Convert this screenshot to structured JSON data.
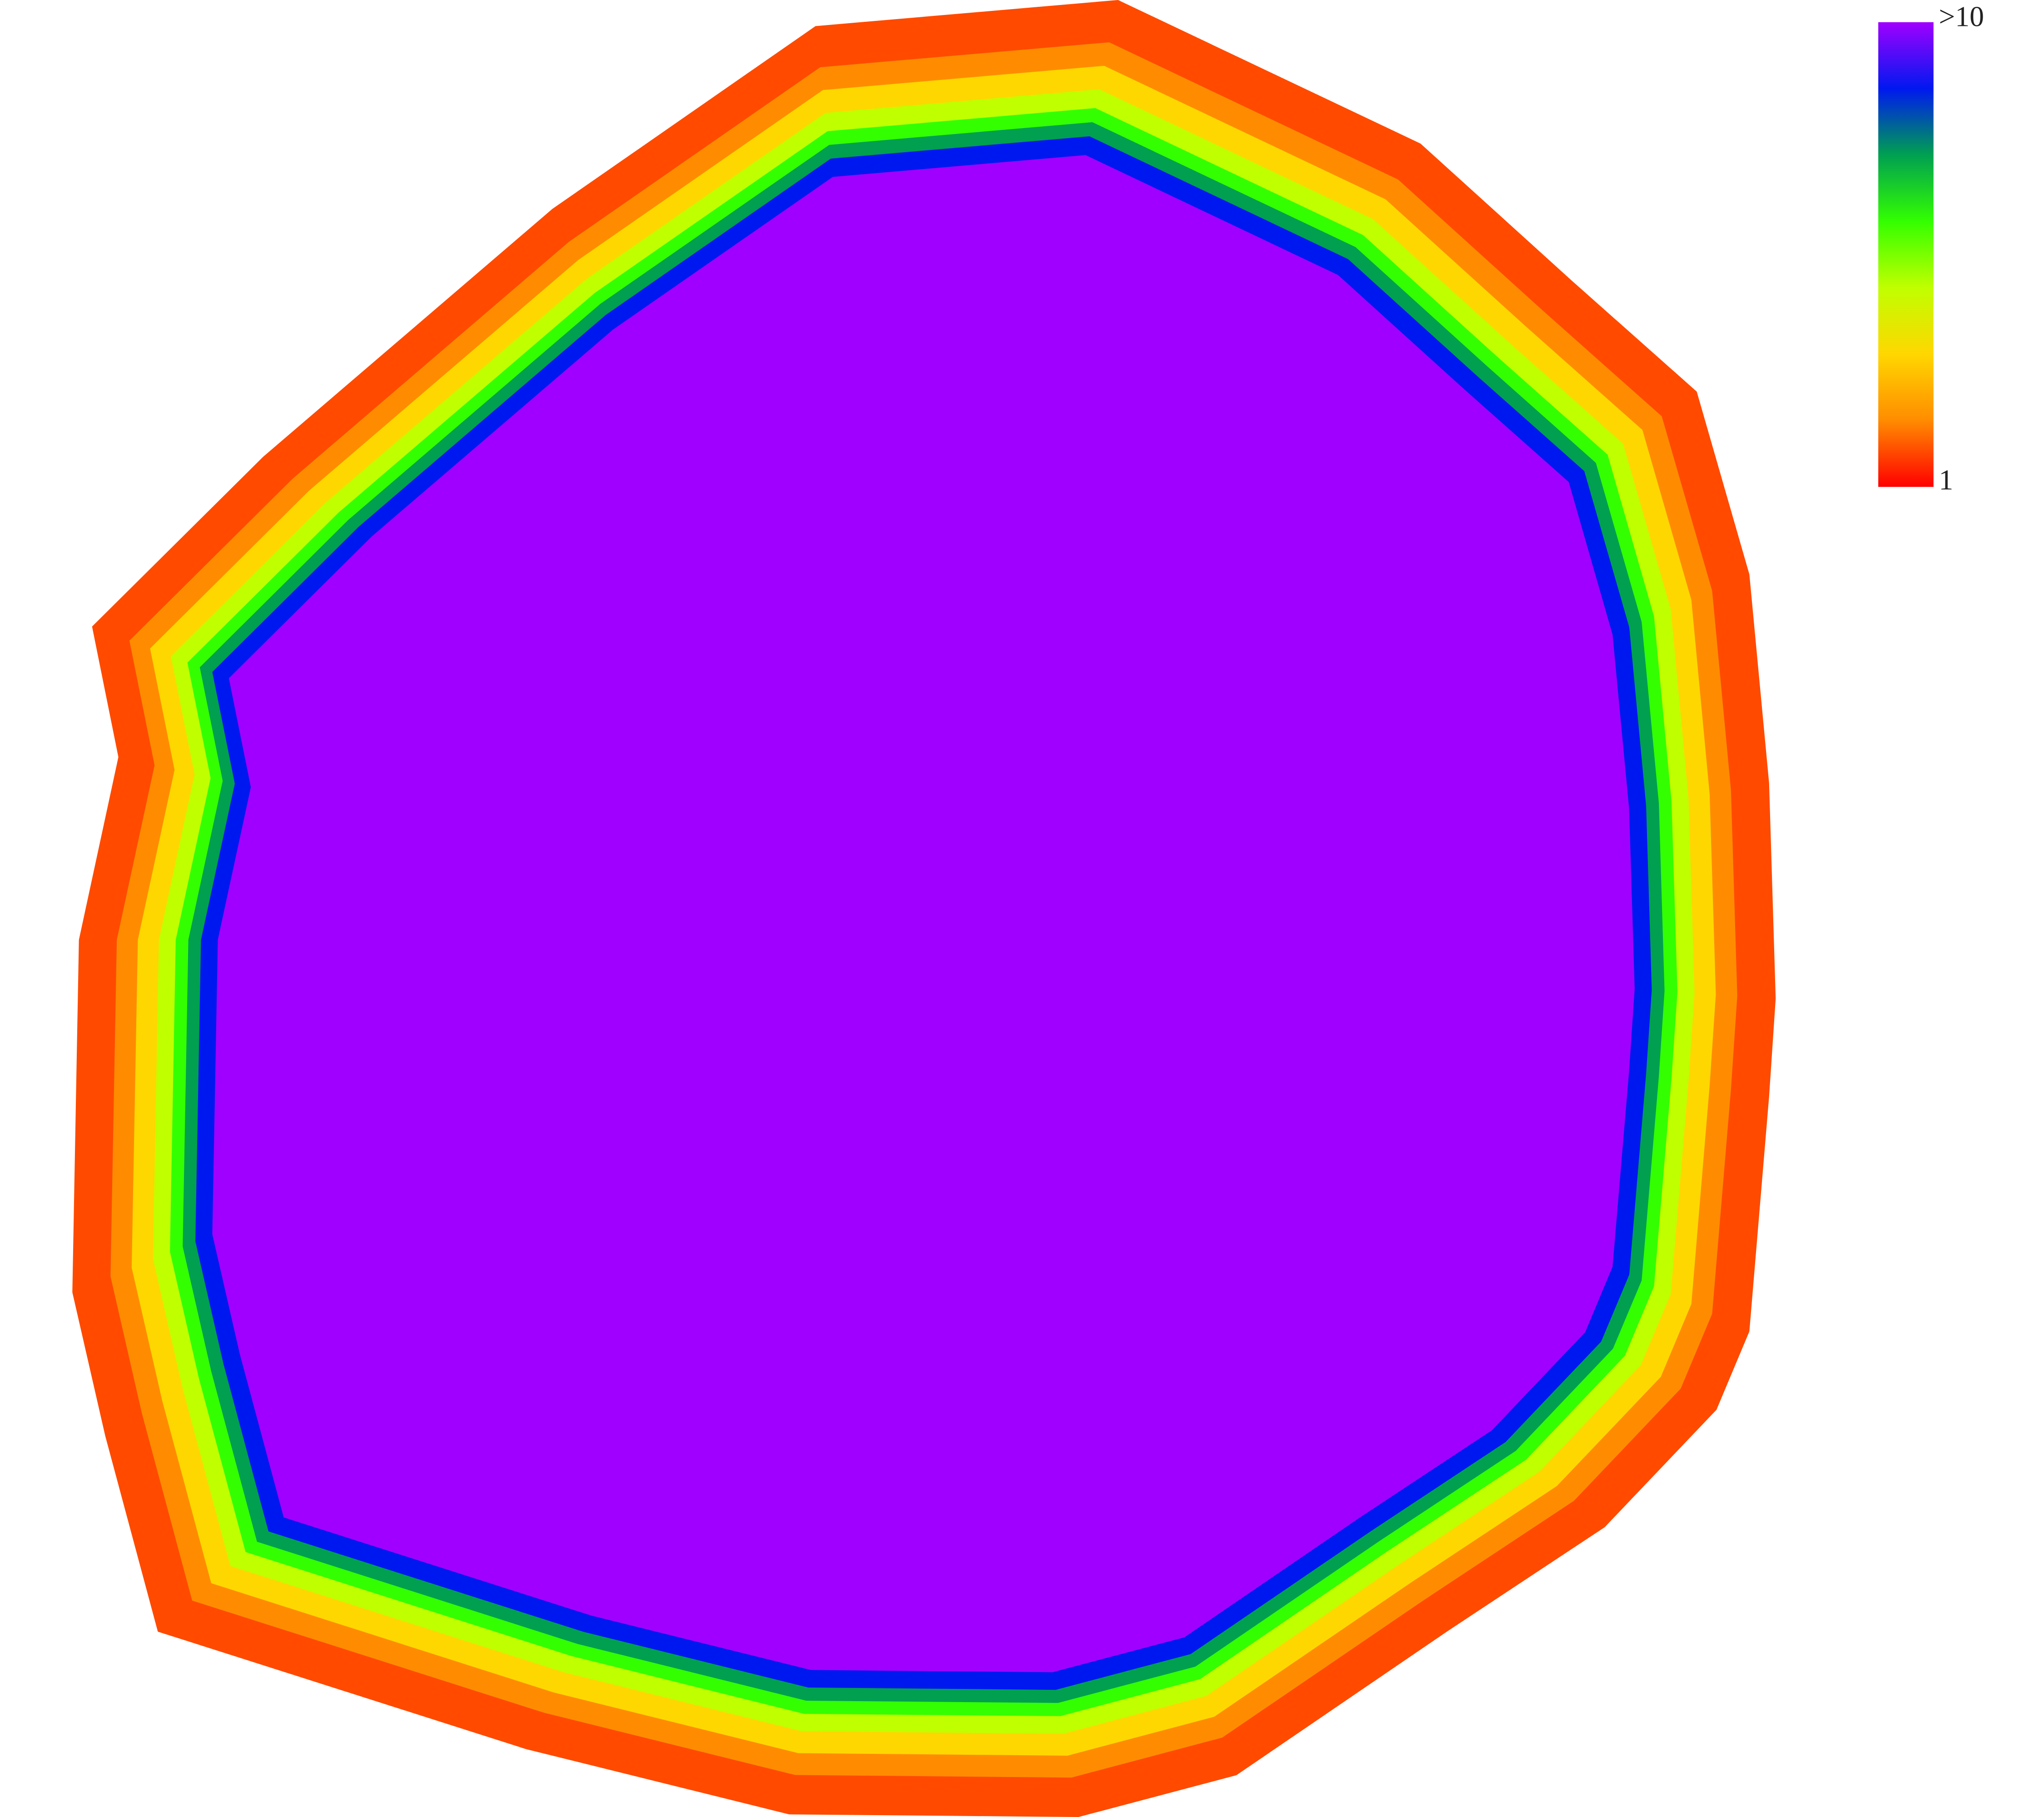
{
  "colorbar": {
    "max_label": ">10",
    "min_label": "1",
    "colors": [
      "#ff0000",
      "#ff8c00",
      "#ffd700",
      "#c0ff00",
      "#33ff00",
      "#00a050",
      "#0018f0",
      "#a000ff"
    ]
  }
}
